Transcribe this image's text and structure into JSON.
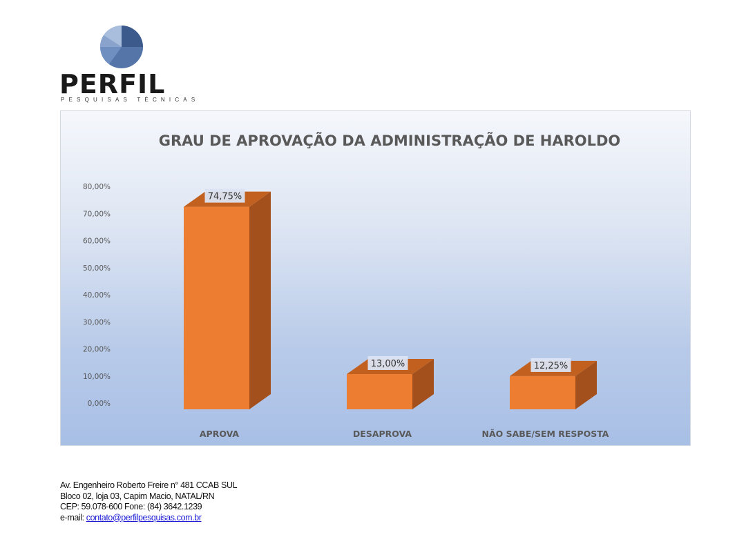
{
  "logo": {
    "name": "PERFIL",
    "tagline": "PESQUISAS TÉCNICAS",
    "colors": [
      "#3d5a8c",
      "#6f8fc0",
      "#a9bedd"
    ]
  },
  "chart_data": {
    "type": "bar",
    "title": "GRAU DE APROVAÇÃO DA ADMINISTRAÇÃO DE HAROLDO",
    "categories": [
      "APROVA",
      "DESAPROVA",
      "NÃO SABE/SEM RESPOSTA"
    ],
    "values": [
      74.75,
      13.0,
      12.25
    ],
    "data_labels": [
      "74,75%",
      "13,00%",
      "12,25%"
    ],
    "y_ticks": [
      0,
      10,
      20,
      30,
      40,
      50,
      60,
      70,
      80
    ],
    "y_tick_labels": [
      "0,00%",
      "10,00%",
      "20,00%",
      "30,00%",
      "40,00%",
      "50,00%",
      "60,00%",
      "70,00%",
      "80,00%"
    ],
    "ylim": [
      0,
      80
    ],
    "xlabel": "",
    "ylabel": "",
    "grid": false,
    "legend": "none",
    "style": "3d-column",
    "bar_color": "#ed7d31",
    "bar_side_color": "#a3501c",
    "bar_top_color": "#c2601f"
  },
  "footer": {
    "address_line1": "Av. Engenheiro Roberto Freire n° 481 CCAB SUL",
    "address_line2": "Bloco 02, loja 03, Capim Macio, NATAL/RN",
    "address_line3": "CEP: 59.078-600 Fone: (84) 3642.1239",
    "email_label": "e-mail: ",
    "email": "contato@perfilpesquisas.com.br"
  }
}
